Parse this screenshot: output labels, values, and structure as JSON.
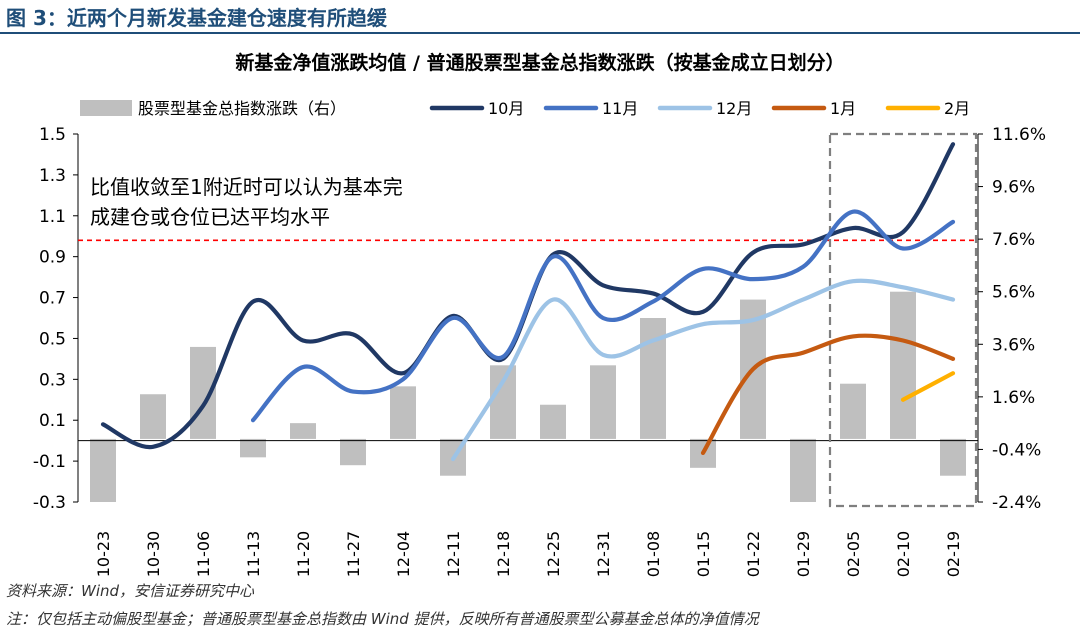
{
  "figure": {
    "label": "图 3：近两个月新发基金建仓速度有所趋缓",
    "source": "资料来源：Wind，安信证券研究中心",
    "note": "注：仅包括主动偏股型基金；普通股票型基金总指数由 Wind 提供，反映所有普通股票型公募基金总体的净值情况"
  },
  "chart_data": {
    "type": "line",
    "title": "新基金净值涨跌均值 / 普通股票型基金总指数涨跌（按基金成立日划分）",
    "categories": [
      "10-23",
      "10-30",
      "11-06",
      "11-13",
      "11-20",
      "11-27",
      "12-04",
      "12-11",
      "12-18",
      "12-25",
      "12-31",
      "01-08",
      "01-15",
      "01-22",
      "01-29",
      "02-05",
      "02-10",
      "02-19"
    ],
    "ylim_left": [
      -0.3,
      1.5
    ],
    "yticks_left": [
      "1.5",
      "1.3",
      "1.1",
      "0.9",
      "0.7",
      "0.5",
      "0.3",
      "0.1",
      "-0.1",
      "-0.3"
    ],
    "ylim_right": [
      -2.4,
      11.6
    ],
    "yticks_right": [
      "11.6%",
      "9.6%",
      "7.6%",
      "5.6%",
      "3.6%",
      "1.6%",
      "-0.4%",
      "-2.4%"
    ],
    "bar_series": {
      "name": "股票型基金总指数涨跌（右）",
      "color": "#bfbfbf",
      "values": [
        -2.4,
        1.7,
        3.5,
        -0.7,
        0.6,
        -1.0,
        2.0,
        -1.4,
        2.8,
        1.3,
        2.8,
        4.6,
        -1.1,
        5.3,
        -2.4,
        2.1,
        5.6,
        -1.4
      ]
    },
    "series": [
      {
        "name": "10月",
        "color": "#203864",
        "values": [
          0.08,
          -0.03,
          0.17,
          0.68,
          0.49,
          0.52,
          0.33,
          0.61,
          0.4,
          0.91,
          0.76,
          0.72,
          0.63,
          0.92,
          0.96,
          1.04,
          1.02,
          1.45
        ]
      },
      {
        "name": "11月",
        "color": "#4472c4",
        "values": [
          null,
          null,
          null,
          0.1,
          0.36,
          0.24,
          0.3,
          0.6,
          0.41,
          0.9,
          0.6,
          0.68,
          0.84,
          0.79,
          0.85,
          1.12,
          0.94,
          1.07
        ]
      },
      {
        "name": "12月",
        "color": "#9dc3e6",
        "values": [
          null,
          null,
          null,
          null,
          null,
          null,
          null,
          -0.09,
          0.29,
          0.69,
          0.42,
          0.49,
          0.57,
          0.59,
          0.69,
          0.78,
          0.75,
          0.69
        ]
      },
      {
        "name": "1月",
        "color": "#c55a11",
        "values": [
          null,
          null,
          null,
          null,
          null,
          null,
          null,
          null,
          null,
          null,
          null,
          null,
          -0.06,
          0.35,
          0.43,
          0.51,
          0.49,
          0.4
        ]
      },
      {
        "name": "2月",
        "color": "#ffb000",
        "values": [
          null,
          null,
          null,
          null,
          null,
          null,
          null,
          null,
          null,
          null,
          null,
          null,
          null,
          null,
          null,
          null,
          0.2,
          0.33
        ]
      }
    ],
    "reference_line": {
      "value": 0.98,
      "color": "#ff0000",
      "style": "dashed"
    },
    "annotation": {
      "lines": [
        "比值收敛至1附近时可以认为基本完",
        "成建仓或仓位已达平均水平"
      ]
    },
    "highlight_box": {
      "from": "02-05",
      "to": "02-19"
    },
    "legend_position": "top",
    "grid": false
  }
}
